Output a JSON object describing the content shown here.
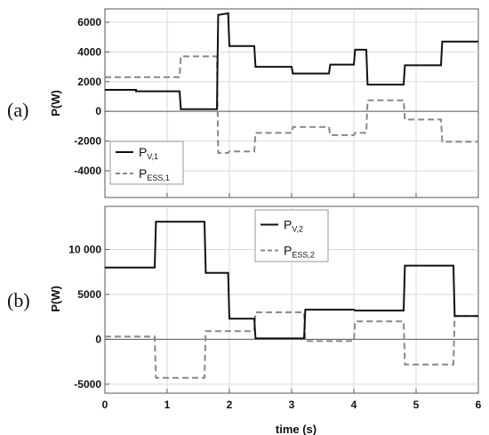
{
  "chart_data": [
    {
      "type": "line",
      "panel_label": "(a)",
      "xlabel": "time (s)",
      "ylabel": "P(W)",
      "xlim": [
        0,
        6
      ],
      "ylim": [
        -5800,
        6900
      ],
      "xticks": [
        0,
        1,
        2,
        3,
        4,
        5,
        6
      ],
      "yticks": [
        -4000,
        -2000,
        0,
        2000,
        4000,
        6000
      ],
      "ytick_labels": [
        "-4000",
        "-2000",
        "0",
        "2000",
        "4000",
        "6000"
      ],
      "grid": true,
      "legend": {
        "placement": "bottom-left",
        "entries": [
          {
            "main": "P",
            "sub": "V,1"
          },
          {
            "main": "P",
            "sub": "ESS,1"
          }
        ]
      },
      "series": [
        {
          "color": "#111111",
          "dash": "solid",
          "x": [
            0,
            0.5,
            0.5,
            1.2,
            1.22,
            1.8,
            1.82,
            1.98,
            2.0,
            2.4,
            2.42,
            3.0,
            3.02,
            3.6,
            3.62,
            4.0,
            4.02,
            4.2,
            4.22,
            4.8,
            4.82,
            5.4,
            5.42,
            6.0
          ],
          "y": [
            1450,
            1450,
            1350,
            1350,
            150,
            150,
            6500,
            6600,
            4400,
            4400,
            3000,
            3000,
            2550,
            2550,
            3150,
            3150,
            4150,
            4150,
            1800,
            1800,
            3100,
            3100,
            4700,
            4700
          ]
        },
        {
          "color": "#888888",
          "dash": "dashed",
          "x": [
            0,
            1.2,
            1.22,
            1.8,
            1.82,
            1.98,
            2.0,
            2.4,
            2.42,
            3.0,
            3.02,
            3.6,
            3.62,
            4.0,
            4.02,
            4.2,
            4.22,
            4.8,
            4.82,
            5.4,
            5.42,
            6.0
          ],
          "y": [
            2300,
            2300,
            3700,
            3700,
            -2800,
            -2800,
            -2700,
            -2700,
            -1450,
            -1450,
            -1050,
            -1050,
            -1600,
            -1600,
            -1450,
            -1450,
            750,
            750,
            -550,
            -550,
            -2050,
            -2050
          ]
        }
      ]
    },
    {
      "type": "line",
      "panel_label": "(b)",
      "xlabel": "time (s)",
      "ylabel": "P(W)",
      "xlim": [
        0,
        6
      ],
      "ylim": [
        -6000,
        14800
      ],
      "xticks": [
        0,
        1,
        2,
        3,
        4,
        5,
        6
      ],
      "xtick_labels": [
        "0",
        "1",
        "2",
        "3",
        "4",
        "5",
        "6"
      ],
      "yticks": [
        -5000,
        0,
        5000,
        10000
      ],
      "ytick_labels": [
        "-5000",
        "0",
        "5000",
        "10 000"
      ],
      "grid": true,
      "legend": {
        "placement": "top-center",
        "entries": [
          {
            "main": "P",
            "sub": "V,2"
          },
          {
            "main": "P",
            "sub": "ESS,2"
          }
        ]
      },
      "series": [
        {
          "color": "#111111",
          "dash": "solid",
          "x": [
            0,
            0.8,
            0.82,
            1.6,
            1.62,
            1.98,
            2.0,
            2.4,
            2.42,
            3.2,
            3.22,
            4.0,
            4.02,
            4.8,
            4.82,
            5.6,
            5.62,
            6.0
          ],
          "y": [
            8000,
            8000,
            13100,
            13100,
            7400,
            7400,
            2300,
            2300,
            100,
            100,
            3300,
            3300,
            3200,
            3200,
            8200,
            8200,
            2600,
            2600
          ]
        },
        {
          "color": "#888888",
          "dash": "dashed",
          "x": [
            0,
            0.8,
            0.82,
            1.6,
            1.62,
            2.0,
            2.02,
            2.4,
            2.42,
            3.2,
            3.22,
            4.0,
            4.02,
            4.8,
            4.82,
            5.6,
            5.62,
            6.0
          ],
          "y": [
            300,
            300,
            -4300,
            -4300,
            900,
            900,
            900,
            900,
            3000,
            3000,
            -200,
            -200,
            2000,
            2000,
            -2800,
            -2800,
            2600,
            2600
          ]
        }
      ]
    }
  ]
}
